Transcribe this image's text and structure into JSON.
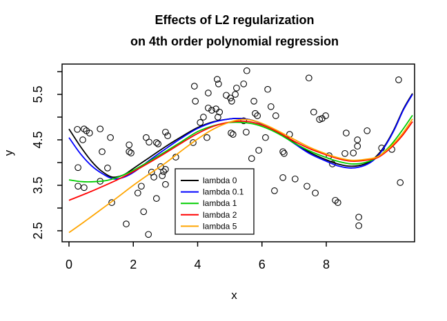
{
  "title": {
    "line1": "Effects of L2 regularization",
    "line2": "on 4th order polynomial regression"
  },
  "chart_data": {
    "type": "scatter",
    "title": "Effects of L2 regularization on 4th order polynomial regression",
    "xlabel": "x",
    "ylabel": "y",
    "xlim": [
      -0.21,
      10.75
    ],
    "ylim": [
      2.26,
      6.17
    ],
    "grid": false,
    "x_axis": {
      "ticks": [
        0,
        2,
        4,
        6,
        8
      ],
      "tick_labels": [
        "0",
        "2",
        "4",
        "6",
        "8"
      ]
    },
    "y_axis": {
      "ticks": [
        2.5,
        3.0,
        3.5,
        4.0,
        4.5,
        5.0,
        5.5,
        6.0
      ],
      "labeled_ticks": [
        2.5,
        3.5,
        4.5,
        5.5
      ],
      "tick_labels": [
        "2.5",
        "3.5",
        "4.5",
        "5.5"
      ]
    },
    "marker": {
      "shape": "open-circle",
      "color": "#000000"
    },
    "scatter_points": [
      [
        0.26,
        4.73
      ],
      [
        0.47,
        4.74
      ],
      [
        0.54,
        4.7
      ],
      [
        0.64,
        4.65
      ],
      [
        0.97,
        4.74
      ],
      [
        0.43,
        4.5
      ],
      [
        1.29,
        4.55
      ],
      [
        1.03,
        4.24
      ],
      [
        1.87,
        4.39
      ],
      [
        1.87,
        4.24
      ],
      [
        1.93,
        4.21
      ],
      [
        2.4,
        4.55
      ],
      [
        2.49,
        4.45
      ],
      [
        0.28,
        3.89
      ],
      [
        0.28,
        3.48
      ],
      [
        0.47,
        3.45
      ],
      [
        0.97,
        3.59
      ],
      [
        1.2,
        3.88
      ],
      [
        1.33,
        3.12
      ],
      [
        1.78,
        2.65
      ],
      [
        2.14,
        3.33
      ],
      [
        2.25,
        3.48
      ],
      [
        2.32,
        2.92
      ],
      [
        2.47,
        2.42
      ],
      [
        2.57,
        3.79
      ],
      [
        2.64,
        3.68
      ],
      [
        2.72,
        3.21
      ],
      [
        2.85,
        3.91
      ],
      [
        2.94,
        3.8
      ],
      [
        3.0,
        3.85
      ],
      [
        2.9,
        3.71
      ],
      [
        3.0,
        3.52
      ],
      [
        2.72,
        4.44
      ],
      [
        2.77,
        4.41
      ],
      [
        3.0,
        4.67
      ],
      [
        3.07,
        4.59
      ],
      [
        3.32,
        4.12
      ],
      [
        3.86,
        4.44
      ],
      [
        4.29,
        4.55
      ],
      [
        4.18,
        5.0
      ],
      [
        4.08,
        4.88
      ],
      [
        4.33,
        5.2
      ],
      [
        4.44,
        5.15
      ],
      [
        4.57,
        5.18
      ],
      [
        4.68,
        5.11
      ],
      [
        4.63,
        5.0
      ],
      [
        3.9,
        5.68
      ],
      [
        3.93,
        5.35
      ],
      [
        4.33,
        5.53
      ],
      [
        4.61,
        5.83
      ],
      [
        4.65,
        5.73
      ],
      [
        4.89,
        5.48
      ],
      [
        5.02,
        5.42
      ],
      [
        5.17,
        5.5
      ],
      [
        5.06,
        5.35
      ],
      [
        5.21,
        5.64
      ],
      [
        5.43,
        5.73
      ],
      [
        5.53,
        6.02
      ],
      [
        5.04,
        4.65
      ],
      [
        6.18,
        5.61
      ],
      [
        5.75,
        5.35
      ],
      [
        6.28,
        5.23
      ],
      [
        5.79,
        5.08
      ],
      [
        5.86,
        5.03
      ],
      [
        6.43,
        5.03
      ],
      [
        5.43,
        4.92
      ],
      [
        5.1,
        4.62
      ],
      [
        5.51,
        4.67
      ],
      [
        6.11,
        4.55
      ],
      [
        6.86,
        4.62
      ],
      [
        5.9,
        4.27
      ],
      [
        6.65,
        4.24
      ],
      [
        6.69,
        4.2
      ],
      [
        5.68,
        4.09
      ],
      [
        7.46,
        5.86
      ],
      [
        10.25,
        5.82
      ],
      [
        7.61,
        5.11
      ],
      [
        7.79,
        4.95
      ],
      [
        7.87,
        4.97
      ],
      [
        7.98,
        5.03
      ],
      [
        8.62,
        4.65
      ],
      [
        9.27,
        4.7
      ],
      [
        8.97,
        4.5
      ],
      [
        8.97,
        4.36
      ],
      [
        8.58,
        4.2
      ],
      [
        8.84,
        4.21
      ],
      [
        9.72,
        4.32
      ],
      [
        10.04,
        4.29
      ],
      [
        8.09,
        4.15
      ],
      [
        6.65,
        3.67
      ],
      [
        7.03,
        3.64
      ],
      [
        6.39,
        3.38
      ],
      [
        7.4,
        3.48
      ],
      [
        7.66,
        3.33
      ],
      [
        8.28,
        3.17
      ],
      [
        8.36,
        3.12
      ],
      [
        9.01,
        2.8
      ],
      [
        9.01,
        2.61
      ],
      [
        10.3,
        3.56
      ],
      [
        8.19,
        3.97
      ]
    ],
    "series": [
      {
        "name": "lambda 0",
        "color": "#000000",
        "points": [
          [
            0,
            4.74
          ],
          [
            0.35,
            4.36
          ],
          [
            0.7,
            4.03
          ],
          [
            1.0,
            3.82
          ],
          [
            1.35,
            3.68
          ],
          [
            1.7,
            3.73
          ],
          [
            2.0,
            3.87
          ],
          [
            2.5,
            4.11
          ],
          [
            3.0,
            4.35
          ],
          [
            3.5,
            4.57
          ],
          [
            4.0,
            4.77
          ],
          [
            4.5,
            4.9
          ],
          [
            5.0,
            4.96
          ],
          [
            5.35,
            4.97
          ],
          [
            5.7,
            4.93
          ],
          [
            6.0,
            4.85
          ],
          [
            6.5,
            4.67
          ],
          [
            7.0,
            4.44
          ],
          [
            7.5,
            4.22
          ],
          [
            8.0,
            4.06
          ],
          [
            8.4,
            3.96
          ],
          [
            8.8,
            3.92
          ],
          [
            9.2,
            3.97
          ],
          [
            9.5,
            4.1
          ],
          [
            9.8,
            4.35
          ],
          [
            10.1,
            4.72
          ],
          [
            10.4,
            5.18
          ],
          [
            10.68,
            5.52
          ]
        ]
      },
      {
        "name": "lambda 0.1",
        "color": "#0000ff",
        "points": [
          [
            0,
            4.55
          ],
          [
            0.35,
            4.2
          ],
          [
            0.7,
            3.93
          ],
          [
            1.05,
            3.75
          ],
          [
            1.4,
            3.64
          ],
          [
            1.75,
            3.69
          ],
          [
            2.1,
            3.83
          ],
          [
            2.5,
            4.05
          ],
          [
            3.0,
            4.3
          ],
          [
            3.5,
            4.54
          ],
          [
            4.0,
            4.75
          ],
          [
            4.5,
            4.89
          ],
          [
            5.0,
            4.96
          ],
          [
            5.35,
            4.97
          ],
          [
            5.7,
            4.93
          ],
          [
            6.0,
            4.85
          ],
          [
            6.5,
            4.66
          ],
          [
            7.0,
            4.42
          ],
          [
            7.5,
            4.19
          ],
          [
            8.0,
            4.03
          ],
          [
            8.4,
            3.92
          ],
          [
            8.8,
            3.88
          ],
          [
            9.2,
            3.94
          ],
          [
            9.5,
            4.07
          ],
          [
            9.8,
            4.33
          ],
          [
            10.1,
            4.7
          ],
          [
            10.4,
            5.16
          ],
          [
            10.68,
            5.5
          ]
        ]
      },
      {
        "name": "lambda 1",
        "color": "#00cd00",
        "points": [
          [
            0,
            3.62
          ],
          [
            0.4,
            3.58
          ],
          [
            0.8,
            3.58
          ],
          [
            1.2,
            3.61
          ],
          [
            1.6,
            3.7
          ],
          [
            2.0,
            3.83
          ],
          [
            2.5,
            4.03
          ],
          [
            3.0,
            4.24
          ],
          [
            3.5,
            4.46
          ],
          [
            4.0,
            4.68
          ],
          [
            4.5,
            4.81
          ],
          [
            5.0,
            4.88
          ],
          [
            5.4,
            4.88
          ],
          [
            5.8,
            4.84
          ],
          [
            6.2,
            4.74
          ],
          [
            6.6,
            4.6
          ],
          [
            7.0,
            4.43
          ],
          [
            7.5,
            4.25
          ],
          [
            8.0,
            4.11
          ],
          [
            8.4,
            4.02
          ],
          [
            8.8,
            3.97
          ],
          [
            9.2,
            4.0
          ],
          [
            9.6,
            4.12
          ],
          [
            10.0,
            4.38
          ],
          [
            10.35,
            4.7
          ],
          [
            10.68,
            5.04
          ]
        ]
      },
      {
        "name": "lambda 2",
        "color": "#ff0000",
        "points": [
          [
            0,
            3.17
          ],
          [
            0.5,
            3.31
          ],
          [
            1.0,
            3.46
          ],
          [
            1.5,
            3.62
          ],
          [
            2.0,
            3.8
          ],
          [
            2.5,
            4.0
          ],
          [
            3.0,
            4.21
          ],
          [
            3.5,
            4.43
          ],
          [
            4.0,
            4.64
          ],
          [
            4.5,
            4.8
          ],
          [
            5.0,
            4.89
          ],
          [
            5.4,
            4.91
          ],
          [
            5.8,
            4.87
          ],
          [
            6.2,
            4.77
          ],
          [
            6.6,
            4.63
          ],
          [
            7.0,
            4.47
          ],
          [
            7.5,
            4.3
          ],
          [
            8.0,
            4.17
          ],
          [
            8.4,
            4.08
          ],
          [
            8.8,
            4.03
          ],
          [
            9.2,
            4.05
          ],
          [
            9.6,
            4.11
          ],
          [
            10.0,
            4.32
          ],
          [
            10.35,
            4.58
          ],
          [
            10.68,
            4.9
          ]
        ]
      },
      {
        "name": "lambda 5",
        "color": "#ffa500",
        "points": [
          [
            0,
            2.46
          ],
          [
            0.5,
            2.71
          ],
          [
            1.0,
            2.97
          ],
          [
            1.5,
            3.23
          ],
          [
            2.0,
            3.5
          ],
          [
            2.5,
            3.75
          ],
          [
            3.0,
            3.99
          ],
          [
            3.5,
            4.26
          ],
          [
            4.0,
            4.52
          ],
          [
            4.5,
            4.74
          ],
          [
            5.0,
            4.89
          ],
          [
            5.4,
            4.95
          ],
          [
            5.8,
            4.91
          ],
          [
            6.2,
            4.8
          ],
          [
            6.6,
            4.66
          ],
          [
            7.0,
            4.51
          ],
          [
            7.5,
            4.33
          ],
          [
            8.0,
            4.19
          ],
          [
            8.4,
            4.1
          ],
          [
            8.8,
            4.05
          ],
          [
            9.2,
            4.07
          ],
          [
            9.6,
            4.13
          ],
          [
            10.0,
            4.35
          ],
          [
            10.35,
            4.62
          ],
          [
            10.68,
            4.96
          ]
        ]
      }
    ],
    "legend": {
      "position": "center-bottom",
      "entries": [
        "lambda 0",
        "lambda 0.1",
        "lambda 1",
        "lambda 2",
        "lambda 5"
      ],
      "colors": [
        "#000000",
        "#0000ff",
        "#00cd00",
        "#ff0000",
        "#ffa500"
      ]
    }
  }
}
